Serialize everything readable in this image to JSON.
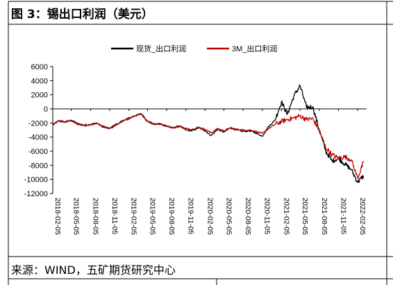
{
  "header": {
    "title": "图 3：锡出口利润（美元）"
  },
  "footer": {
    "source": "来源：WIND，五矿期货研究中心"
  },
  "chart_data": {
    "type": "line",
    "title": "",
    "xlabel": "",
    "ylabel": "",
    "ylim": [
      -12000,
      6000
    ],
    "yticks": [
      6000,
      4000,
      2000,
      0,
      -2000,
      -4000,
      -6000,
      -8000,
      -10000,
      -12000
    ],
    "xticks": [
      "2018-02-05",
      "2018-05-05",
      "2018-08-05",
      "2018-11-05",
      "2019-02-05",
      "2019-05-05",
      "2019-08-05",
      "2019-11-05",
      "2020-02-05",
      "2020-05-05",
      "2020-08-05",
      "2020-11-05",
      "2021-02-05",
      "2021-05-05",
      "2021-08-05",
      "2021-11-05",
      "2022-02-05"
    ],
    "legend_position": "top-center",
    "series": [
      {
        "name": "现货_出口利润",
        "color": "#000000",
        "points": [
          [
            "2018-02-05",
            -2300
          ],
          [
            "2018-03-05",
            -1700
          ],
          [
            "2018-04-05",
            -1900
          ],
          [
            "2018-05-05",
            -1600
          ],
          [
            "2018-06-05",
            -2100
          ],
          [
            "2018-07-05",
            -2300
          ],
          [
            "2018-08-05",
            -2200
          ],
          [
            "2018-09-05",
            -2000
          ],
          [
            "2018-10-05",
            -2600
          ],
          [
            "2018-11-05",
            -2800
          ],
          [
            "2018-12-05",
            -2300
          ],
          [
            "2019-01-05",
            -1700
          ],
          [
            "2019-02-05",
            -1300
          ],
          [
            "2019-03-05",
            -1000
          ],
          [
            "2019-04-05",
            -700
          ],
          [
            "2019-05-05",
            -1800
          ],
          [
            "2019-06-05",
            -2200
          ],
          [
            "2019-07-05",
            -2100
          ],
          [
            "2019-08-05",
            -2500
          ],
          [
            "2019-09-05",
            -2700
          ],
          [
            "2019-10-05",
            -2400
          ],
          [
            "2019-11-05",
            -3000
          ],
          [
            "2019-12-05",
            -3100
          ],
          [
            "2020-01-05",
            -2700
          ],
          [
            "2020-02-05",
            -3100
          ],
          [
            "2020-03-05",
            -3800
          ],
          [
            "2020-04-05",
            -2900
          ],
          [
            "2020-05-05",
            -3300
          ],
          [
            "2020-06-05",
            -2700
          ],
          [
            "2020-07-05",
            -3000
          ],
          [
            "2020-08-05",
            -3200
          ],
          [
            "2020-09-05",
            -3100
          ],
          [
            "2020-10-05",
            -3400
          ],
          [
            "2020-11-05",
            -3900
          ],
          [
            "2020-12-05",
            -2500
          ],
          [
            "2021-01-05",
            -1600
          ],
          [
            "2021-02-05",
            1000
          ],
          [
            "2021-03-05",
            -800
          ],
          [
            "2021-04-05",
            1800
          ],
          [
            "2021-05-05",
            3300
          ],
          [
            "2021-06-05",
            200
          ],
          [
            "2021-07-05",
            300
          ],
          [
            "2021-08-05",
            -3000
          ],
          [
            "2021-09-05",
            -6000
          ],
          [
            "2021-10-05",
            -7400
          ],
          [
            "2021-11-05",
            -7000
          ],
          [
            "2021-12-05",
            -7800
          ],
          [
            "2022-01-05",
            -8600
          ],
          [
            "2022-02-05",
            -10400
          ],
          [
            "2022-03-05",
            -9500
          ]
        ]
      },
      {
        "name": "3M_出口利润",
        "color": "#c00000",
        "points": [
          [
            "2018-02-05",
            -2200
          ],
          [
            "2018-03-05",
            -1700
          ],
          [
            "2018-04-05",
            -1800
          ],
          [
            "2018-05-05",
            -1700
          ],
          [
            "2018-06-05",
            -2200
          ],
          [
            "2018-07-05",
            -2400
          ],
          [
            "2018-08-05",
            -2300
          ],
          [
            "2018-09-05",
            -2100
          ],
          [
            "2018-10-05",
            -2500
          ],
          [
            "2018-11-05",
            -2700
          ],
          [
            "2018-12-05",
            -2200
          ],
          [
            "2019-01-05",
            -1800
          ],
          [
            "2019-02-05",
            -1400
          ],
          [
            "2019-03-05",
            -1000
          ],
          [
            "2019-04-05",
            -700
          ],
          [
            "2019-05-05",
            -1700
          ],
          [
            "2019-06-05",
            -2100
          ],
          [
            "2019-07-05",
            -2200
          ],
          [
            "2019-08-05",
            -2400
          ],
          [
            "2019-09-05",
            -2700
          ],
          [
            "2019-10-05",
            -2500
          ],
          [
            "2019-11-05",
            -2800
          ],
          [
            "2019-12-05",
            -2900
          ],
          [
            "2020-01-05",
            -2600
          ],
          [
            "2020-02-05",
            -2900
          ],
          [
            "2020-03-05",
            -3400
          ],
          [
            "2020-04-05",
            -2800
          ],
          [
            "2020-05-05",
            -3100
          ],
          [
            "2020-06-05",
            -2700
          ],
          [
            "2020-07-05",
            -2900
          ],
          [
            "2020-08-05",
            -3000
          ],
          [
            "2020-09-05",
            -3000
          ],
          [
            "2020-10-05",
            -3200
          ],
          [
            "2020-11-05",
            -3500
          ],
          [
            "2020-12-05",
            -2800
          ],
          [
            "2021-01-05",
            -2200
          ],
          [
            "2021-02-05",
            -1800
          ],
          [
            "2021-03-05",
            -1500
          ],
          [
            "2021-04-05",
            -1300
          ],
          [
            "2021-05-05",
            -1000
          ],
          [
            "2021-06-05",
            -1500
          ],
          [
            "2021-07-05",
            -1400
          ],
          [
            "2021-08-05",
            -3000
          ],
          [
            "2021-09-05",
            -5500
          ],
          [
            "2021-10-05",
            -6500
          ],
          [
            "2021-11-05",
            -7000
          ],
          [
            "2021-12-05",
            -6800
          ],
          [
            "2022-01-05",
            -7200
          ],
          [
            "2022-02-05",
            -9800
          ],
          [
            "2022-03-05",
            -7600
          ]
        ]
      }
    ]
  }
}
